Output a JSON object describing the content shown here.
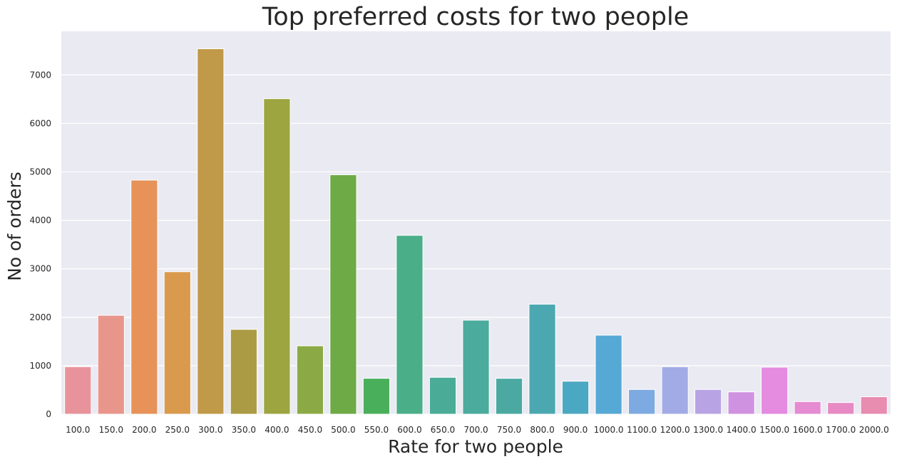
{
  "chart_data": {
    "type": "bar",
    "title": "Top preferred costs for two people",
    "xlabel": "Rate for two people",
    "ylabel": "No of orders",
    "categories": [
      "100.0",
      "150.0",
      "200.0",
      "250.0",
      "300.0",
      "350.0",
      "400.0",
      "450.0",
      "500.0",
      "550.0",
      "600.0",
      "650.0",
      "700.0",
      "750.0",
      "800.0",
      "900.0",
      "1000.0",
      "1100.0",
      "1200.0",
      "1300.0",
      "1400.0",
      "1500.0",
      "1600.0",
      "1700.0",
      "2000.0"
    ],
    "values": [
      980,
      2040,
      4830,
      2940,
      7540,
      1750,
      6510,
      1410,
      4940,
      740,
      3690,
      760,
      1940,
      740,
      2270,
      680,
      1630,
      510,
      980,
      510,
      460,
      970,
      260,
      240,
      360
    ],
    "colors": [
      "#E8939B",
      "#E8968B",
      "#E69258",
      "#D99A4E",
      "#C09A49",
      "#AC9B45",
      "#9CA540",
      "#8BAA46",
      "#6EAA46",
      "#4AAF5A",
      "#4AAF88",
      "#4AAC96",
      "#4BAB9C",
      "#4BA9A2",
      "#4CA8B0",
      "#4BA8C2",
      "#56A8D5",
      "#7DAAE1",
      "#A3ABE6",
      "#B8A4E4",
      "#CF92E0",
      "#E58BE0",
      "#E58BD2",
      "#E78AC4",
      "#E88CB0"
    ],
    "ylim": [
      0,
      7900
    ],
    "yticks": [
      0,
      1000,
      2000,
      3000,
      4000,
      5000,
      6000,
      7000
    ],
    "grid": true,
    "legend": "none"
  }
}
